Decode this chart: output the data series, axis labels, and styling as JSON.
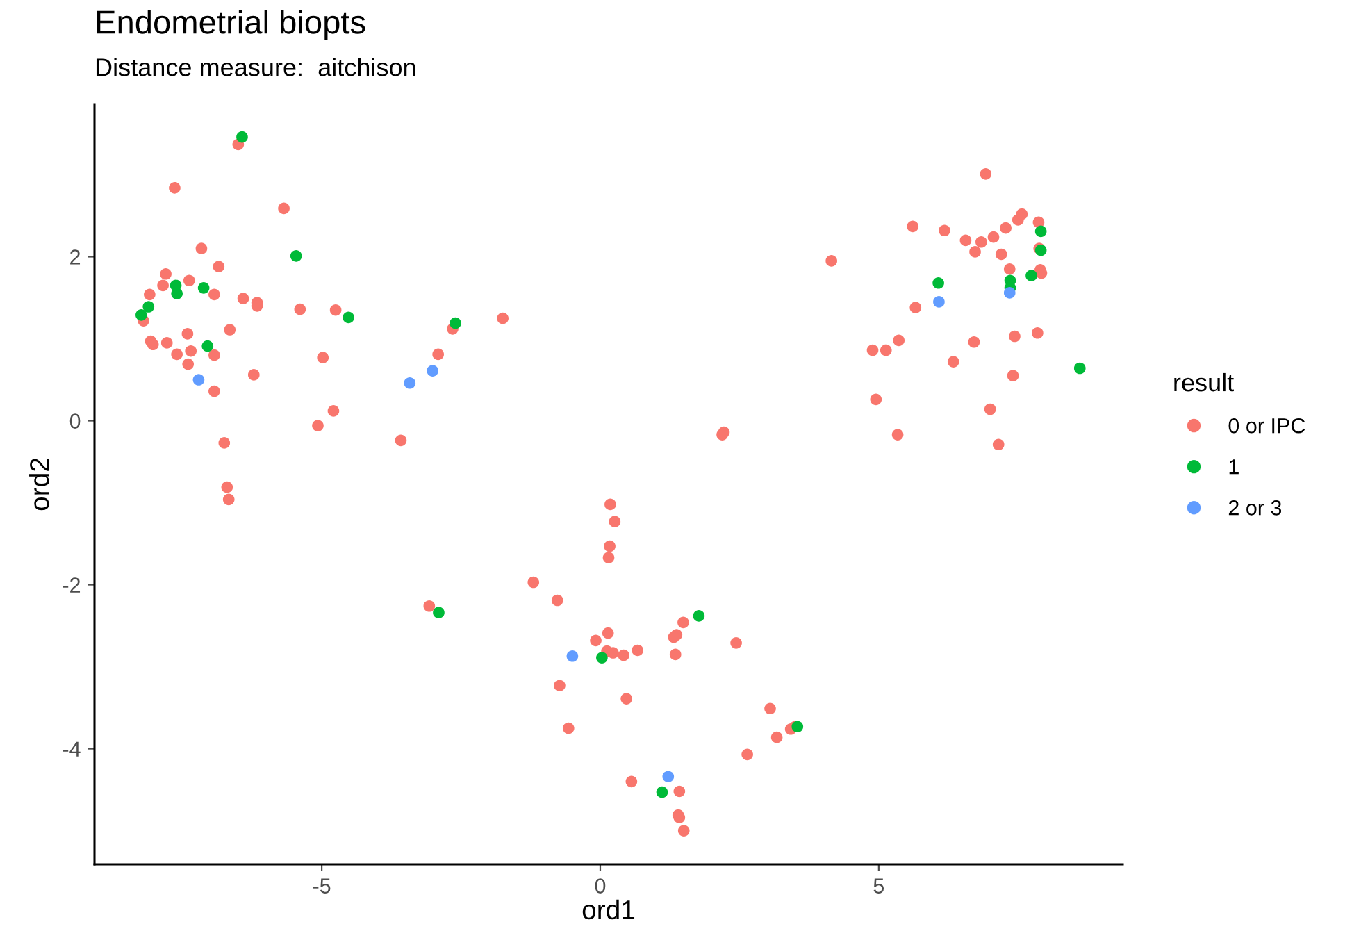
{
  "chart_data": {
    "type": "scatter",
    "title": "Endometrial biopts",
    "subtitle": "Distance measure:  aitchison",
    "xlabel": "ord1",
    "ylabel": "ord2",
    "legend_title": "result",
    "legend": "right",
    "grid": false,
    "marker": "circle",
    "xlim": [
      -9.08,
      9.38
    ],
    "ylim": [
      -5.41,
      3.86
    ],
    "xticks": [
      -5,
      0,
      5
    ],
    "yticks": [
      -4,
      -2,
      0,
      2
    ],
    "series": [
      {
        "name": "0 or IPC",
        "color": "#f8766d",
        "x": [
          -6.5,
          -7.64,
          -5.68,
          -7.16,
          -6.85,
          -7.8,
          -7.85,
          -7.38,
          -8.09,
          -6.93,
          -6.41,
          -6.16,
          -6.16,
          -5.39,
          -4.75,
          -8.2,
          -1.75,
          -6.65,
          -7.41,
          -8.07,
          -8.03,
          -7.78,
          -7.6,
          -7.35,
          -6.93,
          -7.4,
          -4.98,
          -2.65,
          -2.91,
          -6.22,
          -6.93,
          -4.79,
          -5.07,
          -3.58,
          -6.75,
          -6.7,
          -6.67,
          0.18,
          0.26,
          0.17,
          0.15,
          -1.2,
          -0.77,
          -3.07,
          1.49,
          1.37,
          1.32,
          0.14,
          -0.08,
          0.12,
          0.23,
          0.42,
          0.67,
          1.35,
          2.44,
          -0.73,
          0.47,
          -0.57,
          3.05,
          3.17,
          3.42,
          3.5,
          2.64,
          0.56,
          1.42,
          1.4,
          1.42,
          1.5,
          2.22,
          2.19,
          6.92,
          5.61,
          6.18,
          6.56,
          6.84,
          7.06,
          7.28,
          7.5,
          7.57,
          7.87,
          6.73,
          7.2,
          7.88,
          7.35,
          7.9,
          7.92,
          4.15,
          5.66,
          5.36,
          4.89,
          5.13,
          6.71,
          7.44,
          7.85,
          6.34,
          7.41,
          4.95,
          7.0,
          5.34,
          7.15
        ],
        "values": [
          3.37,
          2.84,
          2.59,
          2.1,
          1.88,
          1.79,
          1.65,
          1.71,
          1.54,
          1.54,
          1.49,
          1.44,
          1.4,
          1.36,
          1.35,
          1.22,
          1.25,
          1.11,
          1.06,
          0.97,
          0.93,
          0.95,
          0.81,
          0.85,
          0.8,
          0.69,
          0.77,
          1.12,
          0.81,
          0.56,
          0.36,
          0.12,
          -0.06,
          -0.24,
          -0.27,
          -0.81,
          -0.96,
          -1.02,
          -1.23,
          -1.53,
          -1.67,
          -1.97,
          -2.19,
          -2.26,
          -2.46,
          -2.61,
          -2.64,
          -2.59,
          -2.68,
          -2.81,
          -2.83,
          -2.86,
          -2.8,
          -2.85,
          -2.71,
          -3.23,
          -3.39,
          -3.75,
          -3.51,
          -3.86,
          -3.76,
          -3.73,
          -4.07,
          -4.4,
          -4.52,
          -4.81,
          -4.84,
          -5.0,
          -0.14,
          -0.17,
          3.01,
          2.37,
          2.32,
          2.2,
          2.18,
          2.24,
          2.35,
          2.45,
          2.52,
          2.42,
          2.06,
          2.03,
          2.1,
          1.85,
          1.84,
          1.8,
          1.95,
          1.38,
          0.98,
          0.86,
          0.86,
          0.96,
          1.03,
          1.07,
          0.72,
          0.55,
          0.26,
          0.14,
          -0.17,
          -0.29
        ]
      },
      {
        "name": "1",
        "color": "#00ba38",
        "x": [
          -6.43,
          -5.46,
          -7.62,
          -7.6,
          -7.12,
          -8.11,
          -8.24,
          -4.52,
          -7.05,
          -2.6,
          -2.9,
          1.77,
          0.03,
          3.54,
          1.11,
          7.91,
          7.91,
          6.07,
          7.36,
          7.36,
          7.74,
          8.61
        ],
        "values": [
          3.46,
          2.01,
          1.65,
          1.55,
          1.62,
          1.39,
          1.29,
          1.26,
          0.91,
          1.19,
          -2.34,
          -2.38,
          -2.89,
          -3.73,
          -4.53,
          2.31,
          2.08,
          1.68,
          1.71,
          1.62,
          1.77,
          0.64
        ]
      },
      {
        "name": "2 or 3",
        "color": "#619cff",
        "x": [
          -7.21,
          -3.42,
          -3.01,
          -0.5,
          1.22,
          6.08,
          7.35
        ],
        "values": [
          0.5,
          0.46,
          0.61,
          -2.87,
          -4.34,
          1.45,
          1.56
        ]
      }
    ]
  }
}
